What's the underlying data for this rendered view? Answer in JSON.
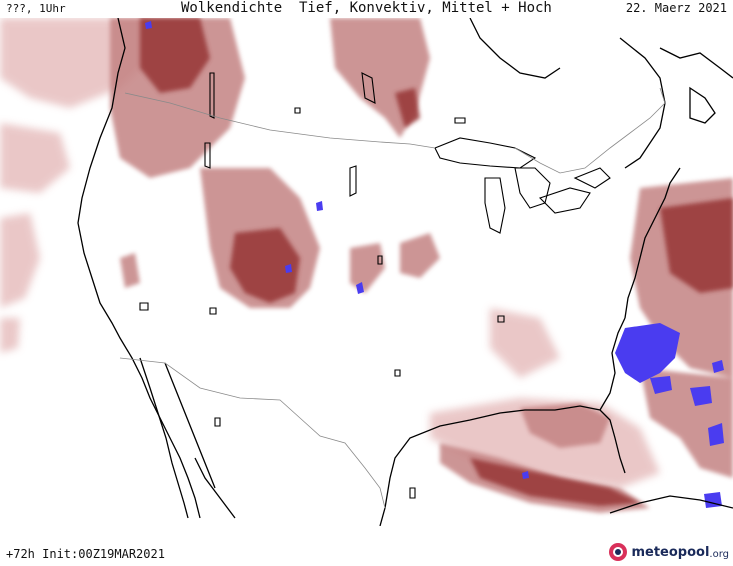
{
  "header": {
    "left": "???, 1Uhr",
    "title": "Wolkendichte  Tief, Konvektiv, Mittel + Hoch",
    "date": "22. Maerz 2021"
  },
  "footer": {
    "run_info": "+72h Init:00Z19MAR2021"
  },
  "branding": {
    "logo_text": "meteopool",
    "logo_domain": ".org",
    "logo_icon": "meteopool-icon"
  },
  "legend_colors": {
    "cloud_low": "#f2dede",
    "cloud_mid": "#d49a9a",
    "cloud_dense": "#a5504f",
    "cloud_very_dense": "#8a2f2e",
    "convective": "#4a3cf0",
    "coast": "#000000",
    "border": "#8a8a8a"
  }
}
